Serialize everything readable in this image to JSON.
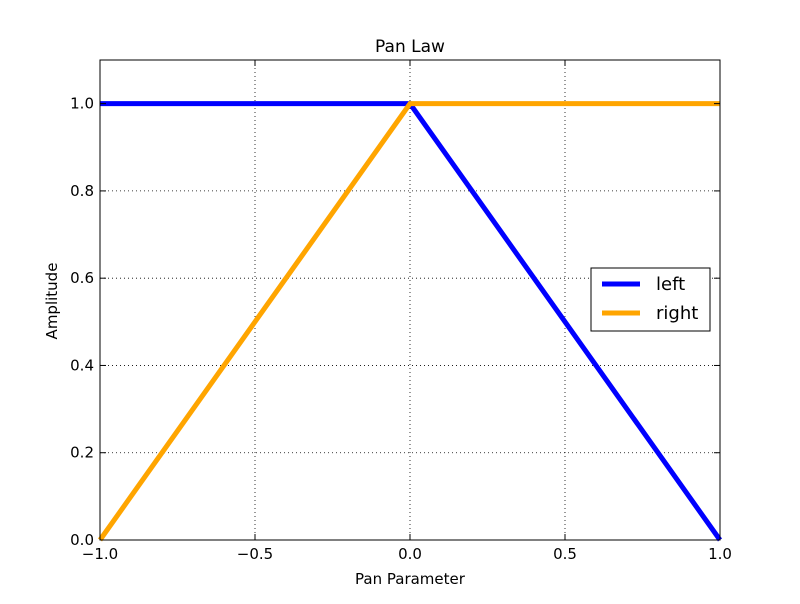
{
  "chart_data": {
    "type": "line",
    "title": "Pan Law",
    "xlabel": "Pan Parameter",
    "ylabel": "Amplitude",
    "xlim": [
      -1.0,
      1.0
    ],
    "ylim": [
      0.0,
      1.1
    ],
    "x_ticks": [
      -1.0,
      -0.5,
      0.0,
      0.5,
      1.0
    ],
    "x_tick_labels": [
      "−1.0",
      "−0.5",
      "0.0",
      "0.5",
      "1.0"
    ],
    "y_ticks": [
      0.0,
      0.2,
      0.4,
      0.6,
      0.8,
      1.0
    ],
    "y_tick_labels": [
      "0.0",
      "0.2",
      "0.4",
      "0.6",
      "0.8",
      "1.0"
    ],
    "grid": true,
    "legend_position": "center-right",
    "series": [
      {
        "name": "left",
        "color": "#0000ff",
        "x": [
          -1.0,
          0.0,
          1.0
        ],
        "y": [
          1.0,
          1.0,
          0.0
        ]
      },
      {
        "name": "right",
        "color": "#ffa500",
        "x": [
          -1.0,
          0.0,
          1.0
        ],
        "y": [
          0.0,
          1.0,
          1.0
        ]
      }
    ]
  }
}
